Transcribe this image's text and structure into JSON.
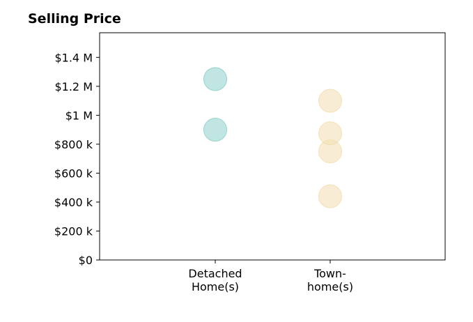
{
  "chart_data": {
    "type": "scatter",
    "title": "Selling Price",
    "xlabel": "",
    "ylabel": "",
    "categories": [
      {
        "lines": [
          "Detached",
          "Home(s)"
        ]
      },
      {
        "lines": [
          "Town-",
          "home(s)"
        ]
      }
    ],
    "y_ticks": [
      {
        "value": 0,
        "label": "$0"
      },
      {
        "value": 200000,
        "label": "$200 k"
      },
      {
        "value": 400000,
        "label": "$400 k"
      },
      {
        "value": 600000,
        "label": "$600 k"
      },
      {
        "value": 800000,
        "label": "$800 k"
      },
      {
        "value": 1000000,
        "label": "$1 M"
      },
      {
        "value": 1200000,
        "label": "$1.2 M"
      },
      {
        "value": 1400000,
        "label": "$1.4 M"
      }
    ],
    "ylim": [
      0,
      1570000
    ],
    "grid": false,
    "series": [
      {
        "category_index": 0,
        "color": "#8ecfca",
        "values": [
          1250000,
          900000
        ]
      },
      {
        "category_index": 1,
        "color": "#f3deb0",
        "values": [
          1100000,
          875000,
          750000,
          440000
        ]
      }
    ]
  }
}
